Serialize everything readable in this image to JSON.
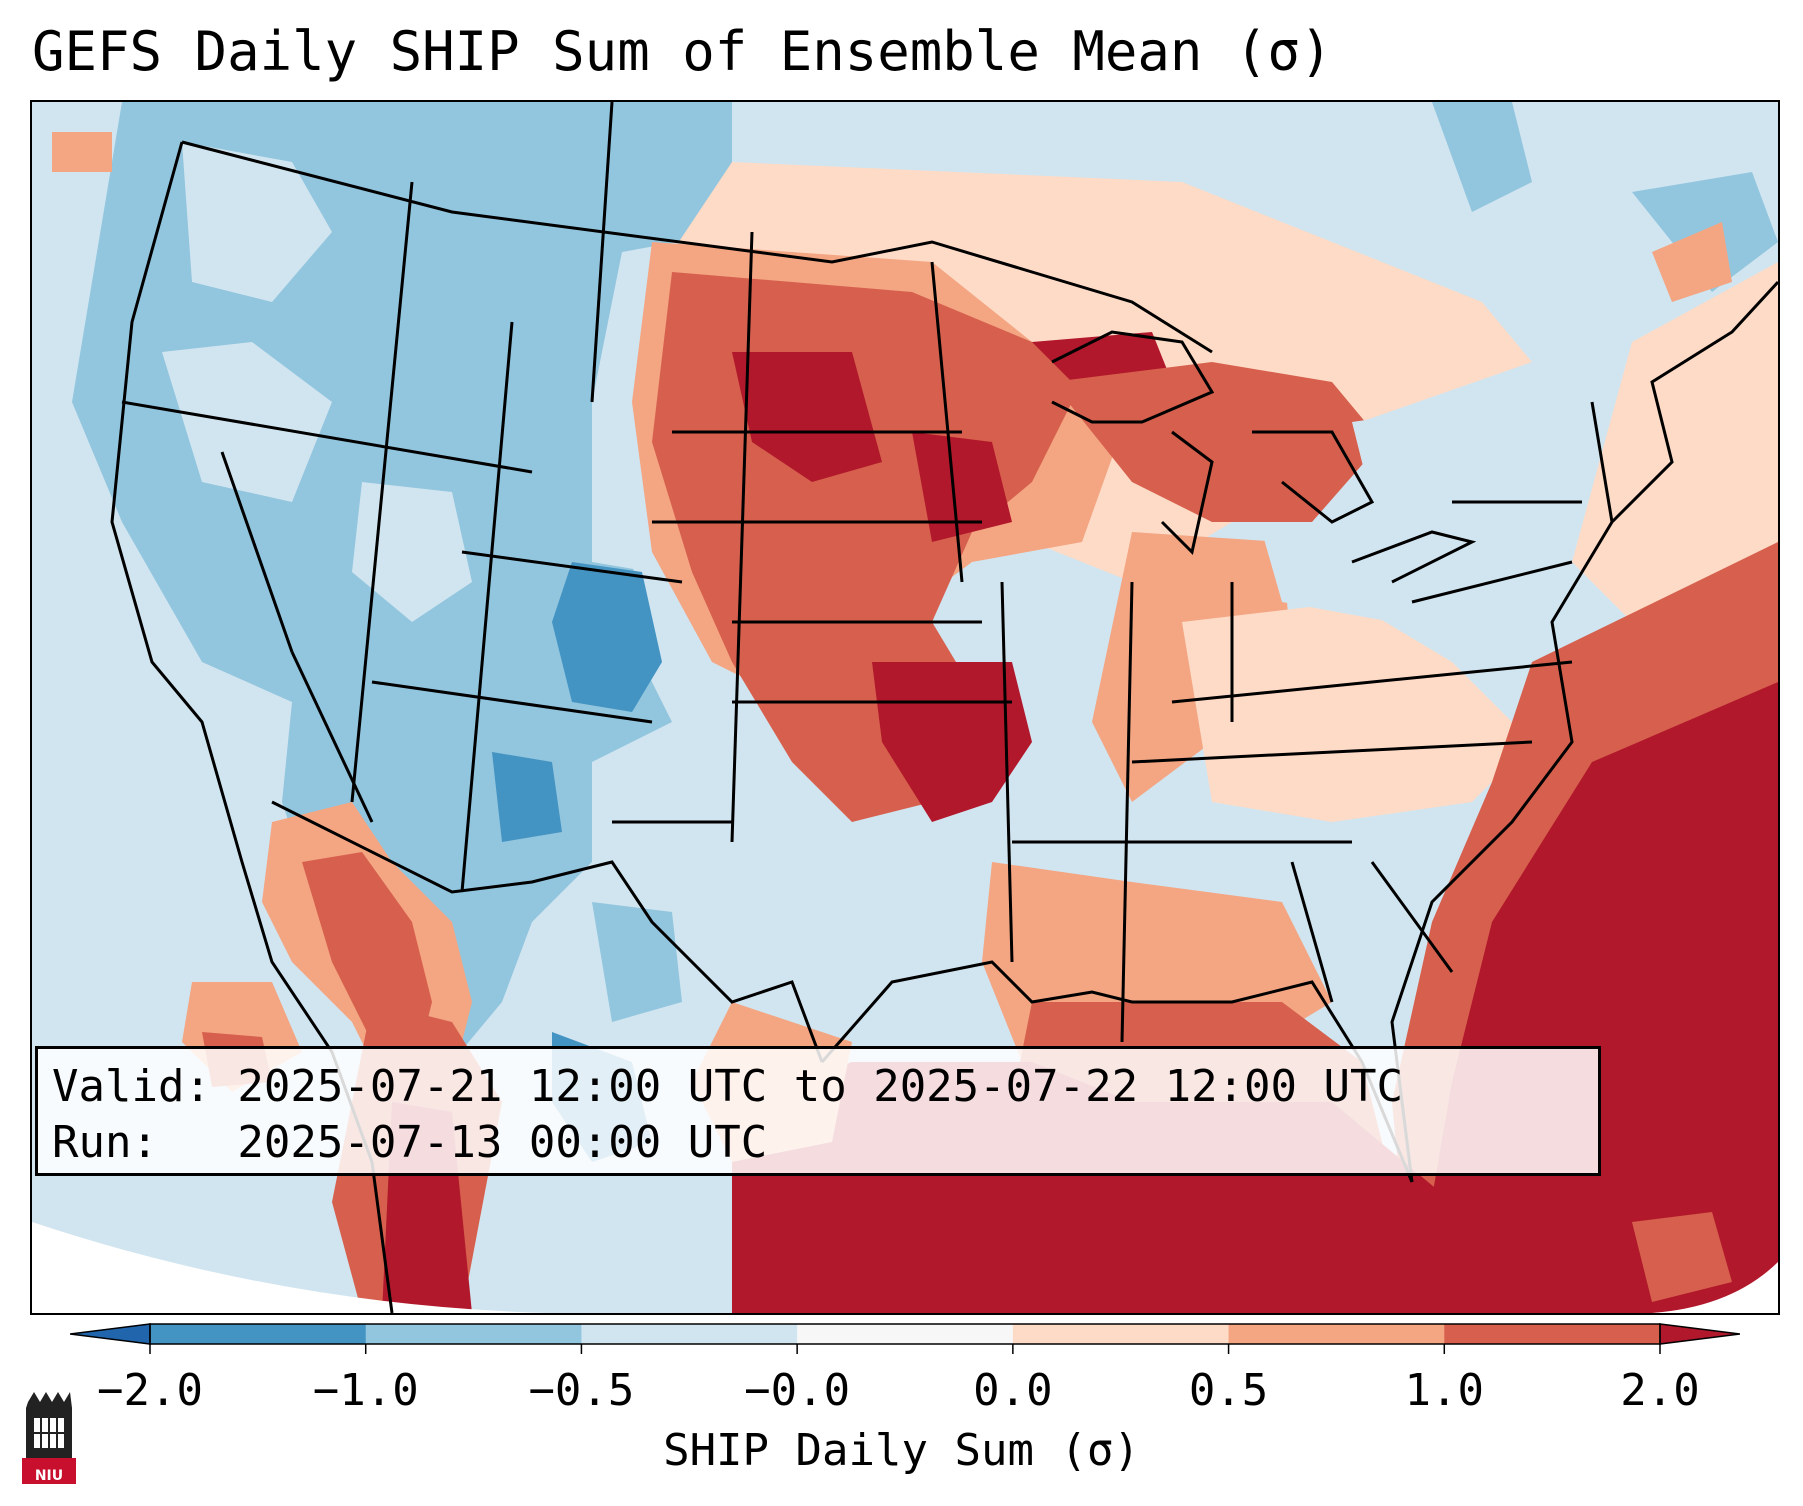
{
  "title": "GEFS Daily SHIP Sum of Ensemble Mean (σ)",
  "info": {
    "valid_line": "Valid: 2025-07-21 12:00 UTC to 2025-07-22 12:00 UTC",
    "run_line": "Run:   2025-07-13 00:00 UTC"
  },
  "colorbar": {
    "label": "SHIP Daily Sum (σ)",
    "ticks": [
      "−2.0",
      "−1.0",
      "−0.5",
      "−0.0",
      "0.0",
      "0.5",
      "1.0",
      "2.0"
    ],
    "colors": [
      "#4393c3",
      "#92c5de",
      "#d1e5f0",
      "#f7f7f7",
      "#fddbc7",
      "#f4a582",
      "#d6604d",
      "#b2182b"
    ]
  },
  "logo": {
    "text": "NIU",
    "icon": "university-tower-icon"
  }
}
